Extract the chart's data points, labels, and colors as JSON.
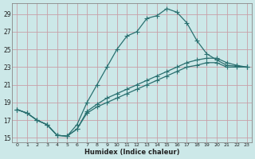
{
  "xlabel": "Humidex (Indice chaleur)",
  "ylabel": "",
  "bg_color": "#cce8e8",
  "grid_color": "#c8a0a8",
  "line_color": "#2a7070",
  "xlim": [
    -0.5,
    23.5
  ],
  "ylim": [
    14.5,
    30.2
  ],
  "xticks": [
    0,
    1,
    2,
    3,
    4,
    5,
    6,
    7,
    8,
    9,
    10,
    11,
    12,
    13,
    14,
    15,
    16,
    17,
    18,
    19,
    20,
    21,
    22,
    23
  ],
  "yticks": [
    15,
    17,
    19,
    21,
    23,
    25,
    27,
    29
  ],
  "line1_x": [
    0,
    1,
    2,
    3,
    4,
    5,
    6,
    7,
    8,
    9,
    10,
    11,
    12,
    13,
    14,
    15,
    16,
    17,
    18,
    19,
    20,
    21,
    22,
    23
  ],
  "line1_y": [
    18.2,
    17.8,
    17.0,
    16.5,
    15.3,
    15.2,
    16.5,
    19.0,
    21.0,
    23.0,
    25.0,
    26.5,
    27.0,
    28.5,
    28.8,
    29.6,
    29.2,
    28.0,
    26.0,
    24.5,
    23.8,
    23.2,
    23.1,
    23.0
  ],
  "line2_x": [
    0,
    1,
    2,
    3,
    4,
    5,
    6,
    7,
    8,
    9,
    10,
    11,
    12,
    13,
    14,
    15,
    16,
    17,
    18,
    19,
    20,
    21,
    22,
    23
  ],
  "line2_y": [
    18.2,
    17.8,
    17.0,
    16.5,
    15.3,
    15.2,
    16.0,
    18.0,
    18.8,
    19.5,
    20.0,
    20.5,
    21.0,
    21.5,
    22.0,
    22.5,
    23.0,
    23.5,
    23.8,
    24.0,
    24.0,
    23.5,
    23.2,
    23.0
  ],
  "line3_x": [
    0,
    1,
    2,
    3,
    4,
    5,
    6,
    7,
    8,
    9,
    10,
    11,
    12,
    13,
    14,
    15,
    16,
    17,
    18,
    19,
    20,
    21,
    22,
    23
  ],
  "line3_y": [
    18.2,
    17.8,
    17.0,
    16.5,
    15.3,
    15.2,
    16.0,
    17.8,
    18.5,
    19.0,
    19.5,
    20.0,
    20.5,
    21.0,
    21.5,
    22.0,
    22.5,
    23.0,
    23.2,
    23.5,
    23.5,
    23.0,
    23.0,
    23.0
  ],
  "marker": "+",
  "marker_size": 4,
  "line_width": 0.9
}
